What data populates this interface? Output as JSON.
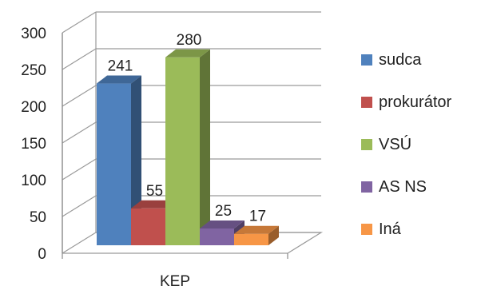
{
  "chart_data": {
    "type": "bar",
    "style": "3d-clustered-column",
    "categories": [
      "KEP"
    ],
    "series": [
      {
        "name": "sudca",
        "values": [
          241
        ],
        "color": "#4F81BD"
      },
      {
        "name": "prokurátor",
        "values": [
          55
        ],
        "color": "#C0504D"
      },
      {
        "name": "VSÚ",
        "values": [
          280
        ],
        "color": "#9BBB59"
      },
      {
        "name": "AS NS",
        "values": [
          25
        ],
        "color": "#8064A2"
      },
      {
        "name": "Iná",
        "values": [
          17
        ],
        "color": "#F79646"
      }
    ],
    "data_labels": [
      "241",
      "55",
      "280",
      "25",
      "17"
    ],
    "title": "",
    "xlabel": "",
    "ylabel": "",
    "ylim": [
      0,
      300
    ],
    "yticks": [
      0,
      50,
      100,
      150,
      200,
      250,
      300
    ],
    "ytick_labels": [
      "0",
      "50",
      "100",
      "150",
      "200",
      "250",
      "300"
    ],
    "grid": true,
    "legend_position": "right"
  }
}
